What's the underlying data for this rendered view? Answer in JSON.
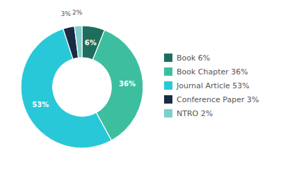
{
  "chart_data": {
    "type": "donut",
    "categories": [
      "Book 6%",
      "Book Chapter 36%",
      "Journal Article 53%",
      "Conference Paper 3%",
      "NTRO 2%"
    ],
    "values": [
      6,
      36,
      53,
      3,
      2
    ],
    "value_labels": [
      "6%",
      "36%",
      "53%",
      "3%",
      "2%"
    ],
    "colors": [
      "#1e6e5e",
      "#3dbf9f",
      "#29c8d8",
      "#1a2b45",
      "#7ecece"
    ],
    "data_labels": true,
    "legend": "right"
  }
}
